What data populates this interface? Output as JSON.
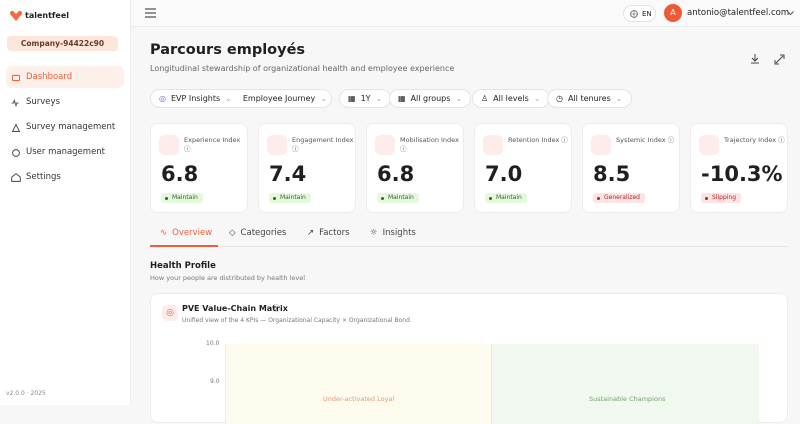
{
  "sidebar": {
    "brand": "talentfeel",
    "company": "Company-94422c90",
    "nav": [
      "Dashboard",
      "Surveys",
      "Survey management",
      "User management",
      "Settings"
    ],
    "version": "v2.0.0 · 2025"
  },
  "topbar": {
    "language": "EN",
    "avatar": "A",
    "user": "antonio@talentfeel.com"
  },
  "header": {
    "title": "Parcours employés",
    "subtitle": "Longitudinal stewardship of organizational health and employee experience"
  },
  "filters": {
    "view": "EVP Insights",
    "journey": "Employee Journey",
    "period": "1Y",
    "groups": "All groups",
    "levels": "All levels",
    "tenures": "All tenures"
  },
  "kpis": [
    {
      "label": "Experience Index",
      "value": "6.8",
      "status": "Maintain"
    },
    {
      "label": "Engagement Index",
      "value": "7.4",
      "status": "Maintain"
    },
    {
      "label": "Mobilisation Index",
      "value": "6.8",
      "status": "Maintain"
    },
    {
      "label": "Retention Index",
      "value": "7.0",
      "status": "Maintain"
    },
    {
      "label": "Systemic Index",
      "value": "8.5",
      "status": "Generalized"
    },
    {
      "label": "Trajectory Index",
      "value": "-10.3%",
      "status": "Slipping"
    }
  ],
  "tabs": [
    "Overview",
    "Categories",
    "Factors",
    "Insights"
  ],
  "section": {
    "title": "Health Profile",
    "subtitle": "How your people are distributed by health level"
  },
  "matrix": {
    "title": "PVE Value-Chain Matrix",
    "subtitle": "Unified view of the 4 KPIs — Organizational Capacity × Organizational Bond",
    "y_labels": [
      "10.0",
      "9.0"
    ],
    "quadrants": [
      "Under-activated Loyal",
      "Sustainable Champions"
    ]
  }
}
